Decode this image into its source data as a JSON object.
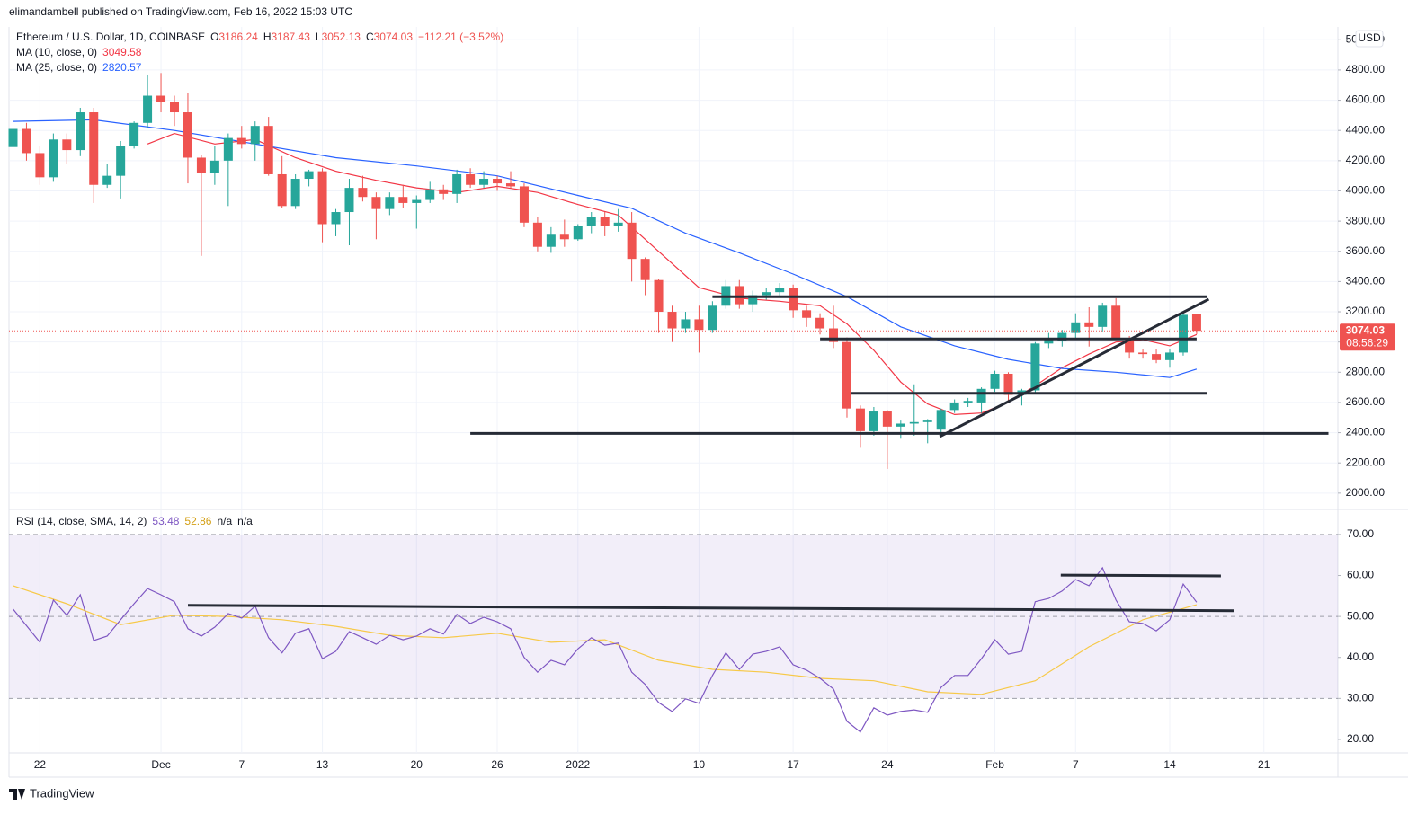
{
  "header": {
    "publisher": "elimandambell published on TradingView.com, Feb 16, 2022 15:03 UTC",
    "currency": "USD",
    "countdown": "08:56:29",
    "brand": "TradingView"
  },
  "legend": {
    "symbol": "Ethereum / U.S. Dollar, 1D, COINBASE",
    "open_label": "O",
    "high_label": "H",
    "low_label": "L",
    "close_label": "C",
    "change": "−112.21 (−3.52%)"
  },
  "chart_data": [
    {
      "type": "candlestick",
      "up_color": "#26a69a",
      "down_color": "#ef5350",
      "grid": true,
      "xlim": [
        -0.3,
        98.5
      ],
      "ylim": [
        1898,
        5085
      ],
      "xticks": [
        {
          "value": 2,
          "label": "22"
        },
        {
          "value": 11,
          "label": "Dec"
        },
        {
          "value": 17,
          "label": "7"
        },
        {
          "value": 23,
          "label": "13"
        },
        {
          "value": 30,
          "label": "20"
        },
        {
          "value": 36,
          "label": "26"
        },
        {
          "value": 42,
          "label": "2022"
        },
        {
          "value": 51,
          "label": "10"
        },
        {
          "value": 58,
          "label": "17"
        },
        {
          "value": 65,
          "label": "24"
        },
        {
          "value": 73,
          "label": "Feb"
        },
        {
          "value": 79,
          "label": "7"
        },
        {
          "value": 86,
          "label": "14"
        },
        {
          "value": 93,
          "label": "21"
        }
      ],
      "yticks": [
        {
          "value": 2000,
          "label": "2000.00"
        },
        {
          "value": 2200,
          "label": "2200.00"
        },
        {
          "value": 2400,
          "label": "2400.00"
        },
        {
          "value": 2600,
          "label": "2600.00"
        },
        {
          "value": 2800,
          "label": "2800.00"
        },
        {
          "value": 3000,
          "label": "3000.00"
        },
        {
          "value": 3200,
          "label": "3200.00"
        },
        {
          "value": 3400,
          "label": "3400.00"
        },
        {
          "value": 3600,
          "label": "3600.00"
        },
        {
          "value": 3800,
          "label": "3800.00"
        },
        {
          "value": 4000,
          "label": "4000.00"
        },
        {
          "value": 4200,
          "label": "4200.00"
        },
        {
          "value": 4400,
          "label": "4400.00"
        },
        {
          "value": 4600,
          "label": "4600.00"
        },
        {
          "value": 4800,
          "label": "4800.00"
        },
        {
          "value": 5000,
          "label": "5000.00"
        }
      ],
      "open": [
        4290,
        4410,
        4250,
        4090,
        4340,
        4270,
        4520,
        4040,
        4100,
        4300,
        4450,
        4630,
        4590,
        4520,
        4220,
        4120,
        4200,
        4350,
        4310,
        4430,
        4110,
        3900,
        4080,
        4130,
        3780,
        3860,
        4020,
        3960,
        3880,
        3960,
        3920,
        3940,
        4010,
        3980,
        4110,
        4040,
        4080,
        4050,
        4030,
        3790,
        3630,
        3710,
        3680,
        3770,
        3830,
        3770,
        3790,
        3550,
        3410,
        3200,
        3090,
        3150,
        3080,
        3240,
        3370,
        3250,
        3310,
        3330,
        3360,
        3210,
        3160,
        3090,
        3000,
        2560,
        2410,
        2540,
        2440,
        2460,
        2470,
        2420,
        2550,
        2600,
        2600,
        2690,
        2790,
        2650,
        2680,
        2990,
        3010,
        3060,
        3130,
        3100,
        3240,
        3020,
        2930,
        2920,
        2880,
        2930,
        3186.24
      ],
      "high": [
        4460,
        4450,
        4300,
        4380,
        4380,
        4550,
        4550,
        4180,
        4330,
        4460,
        4770,
        4780,
        4630,
        4650,
        4240,
        4300,
        4380,
        4430,
        4460,
        4490,
        4230,
        4110,
        4140,
        4150,
        3880,
        4080,
        4100,
        3990,
        3990,
        4040,
        3970,
        4060,
        4040,
        4140,
        4150,
        4130,
        4100,
        4130,
        4050,
        3830,
        3760,
        3810,
        3780,
        3860,
        3860,
        3880,
        3860,
        3560,
        3420,
        3240,
        3200,
        3240,
        3270,
        3410,
        3410,
        3340,
        3360,
        3390,
        3380,
        3240,
        3190,
        3240,
        3030,
        2580,
        2570,
        2550,
        2480,
        2720,
        2490,
        2560,
        2620,
        2630,
        2700,
        2810,
        2800,
        2690,
        3000,
        3060,
        3080,
        3190,
        3230,
        3260,
        3290,
        3040,
        2950,
        2950,
        2950,
        3190,
        3187.43
      ],
      "low": [
        4200,
        4200,
        4040,
        4060,
        4180,
        4230,
        3920,
        4020,
        3950,
        4280,
        4420,
        4520,
        4430,
        4050,
        3570,
        4040,
        3900,
        4280,
        4200,
        4100,
        3890,
        3880,
        4030,
        3660,
        3700,
        3640,
        3930,
        3680,
        3840,
        3890,
        3750,
        3920,
        3940,
        3920,
        4020,
        4020,
        4000,
        4020,
        3760,
        3600,
        3590,
        3630,
        3670,
        3720,
        3700,
        3730,
        3400,
        3310,
        3060,
        3000,
        3060,
        2930,
        3060,
        3220,
        3220,
        3200,
        3280,
        3300,
        3160,
        3100,
        3050,
        2960,
        2500,
        2300,
        2380,
        2160,
        2360,
        2380,
        2330,
        2380,
        2530,
        2570,
        2530,
        2670,
        2610,
        2580,
        2660,
        2960,
        2970,
        3020,
        2970,
        3070,
        3020,
        2890,
        2890,
        2860,
        2830,
        2910,
        3052.13
      ],
      "close": [
        4410,
        4250,
        4090,
        4340,
        4270,
        4520,
        4040,
        4100,
        4300,
        4450,
        4630,
        4590,
        4520,
        4220,
        4120,
        4200,
        4350,
        4310,
        4430,
        4110,
        3900,
        4080,
        4130,
        3780,
        3860,
        4020,
        3960,
        3880,
        3960,
        3920,
        3940,
        4010,
        3980,
        4110,
        4040,
        4080,
        4050,
        4030,
        3790,
        3630,
        3710,
        3680,
        3770,
        3830,
        3770,
        3790,
        3550,
        3410,
        3200,
        3090,
        3150,
        3080,
        3240,
        3370,
        3250,
        3310,
        3330,
        3360,
        3210,
        3160,
        3090,
        3000,
        2560,
        2410,
        2540,
        2440,
        2460,
        2470,
        2480,
        2550,
        2600,
        2610,
        2690,
        2790,
        2650,
        2680,
        2990,
        3020,
        3060,
        3130,
        3100,
        3240,
        3020,
        2930,
        2920,
        2880,
        2930,
        3180,
        3074.03
      ],
      "series": [
        {
          "name": "MA (10, close, 0)",
          "color": "#f23645",
          "x": [
            10,
            12,
            15,
            18,
            21,
            24,
            27,
            30,
            33,
            36,
            39,
            42,
            45,
            48,
            51,
            54,
            57,
            60,
            62,
            64,
            66,
            68,
            70,
            72,
            74,
            76,
            78,
            80,
            82,
            84,
            86,
            88
          ],
          "values": [
            4310,
            4380,
            4310,
            4340,
            4220,
            4130,
            4070,
            4020,
            3990,
            4030,
            3990,
            3910,
            3840,
            3600,
            3360,
            3290,
            3270,
            3240,
            3120,
            2945,
            2735,
            2590,
            2520,
            2530,
            2600,
            2710,
            2830,
            2920,
            3000,
            3015,
            2975,
            3049.58
          ]
        },
        {
          "name": "MA (25, close, 0)",
          "color": "#2962ff",
          "x": [
            0,
            6,
            12,
            18,
            24,
            30,
            36,
            42,
            46,
            50,
            54,
            58,
            62,
            66,
            70,
            74,
            78,
            82,
            86,
            88
          ],
          "values": [
            4460,
            4470,
            4400,
            4310,
            4220,
            4165,
            4100,
            3970,
            3885,
            3720,
            3590,
            3450,
            3300,
            3100,
            2975,
            2885,
            2825,
            2800,
            2765,
            2820.57
          ]
        }
      ],
      "lines": [
        {
          "x": [
            34,
            97.8
          ],
          "y": [
            2395,
            2395
          ]
        },
        {
          "x": [
            62.3,
            88.8
          ],
          "y": [
            2660,
            2660
          ]
        },
        {
          "x": [
            60,
            88
          ],
          "y": [
            3020,
            3020
          ]
        },
        {
          "x": [
            52,
            88.8
          ],
          "y": [
            3300,
            3300
          ]
        },
        {
          "x": [
            68.9,
            88.9
          ],
          "y": [
            2374,
            3283
          ]
        }
      ]
    },
    {
      "type": "rsi",
      "title": "RSI (14, close, SMA, 14, 2)",
      "band": [
        30,
        70
      ],
      "midline": 50,
      "band_color": "#7e57c2",
      "xlim": [
        -0.3,
        98.5
      ],
      "ylim": [
        16.7,
        75.9
      ],
      "yticks": [
        {
          "value": 20,
          "label": "20.00"
        },
        {
          "value": 30,
          "label": "30.00"
        },
        {
          "value": 40,
          "label": "40.00"
        },
        {
          "value": 50,
          "label": "50.00"
        },
        {
          "value": 60,
          "label": "60.00"
        },
        {
          "value": 70,
          "label": "70.00"
        }
      ],
      "na_labels": [
        "n/a",
        "n/a"
      ],
      "series": [
        {
          "name": "RSI",
          "color": "#7e57c2",
          "x": [
            0,
            2,
            3,
            4,
            5,
            6,
            7,
            8,
            9,
            10,
            11,
            12,
            13,
            14,
            15,
            16,
            17,
            18,
            19,
            20,
            21,
            22,
            23,
            24,
            25,
            26,
            27,
            28,
            29,
            30,
            31,
            32,
            33,
            34,
            35,
            36,
            37,
            38,
            39,
            40,
            41,
            42,
            43,
            44,
            45,
            46,
            47,
            48,
            49,
            50,
            51,
            52,
            53,
            54,
            55,
            56,
            57,
            58,
            59,
            60,
            61,
            62,
            63,
            64,
            65,
            66,
            67,
            68,
            69,
            70,
            71,
            72,
            73,
            74,
            75,
            76,
            77,
            78,
            79,
            80,
            81,
            82,
            83,
            84,
            85,
            86,
            87,
            88
          ],
          "values": [
            51.8,
            43.7,
            54,
            50.3,
            55.3,
            44.1,
            45.2,
            49.2,
            53.1,
            56.8,
            55.3,
            53.6,
            47,
            45.2,
            47.4,
            50.7,
            49.6,
            52.5,
            44.8,
            41.1,
            45.9,
            47,
            39.7,
            41.5,
            46.3,
            44.8,
            43.2,
            45.4,
            44.3,
            45.2,
            47,
            45.7,
            50.5,
            48.3,
            49.8,
            48.7,
            47,
            40,
            36.4,
            39.3,
            38.2,
            42.1,
            44.8,
            43,
            43.5,
            36.4,
            33.4,
            29,
            26.8,
            29.9,
            28.8,
            35.6,
            41.1,
            37.1,
            40.8,
            41.5,
            42.6,
            38.2,
            36.9,
            34.9,
            32.3,
            24.4,
            21.8,
            27.7,
            25.9,
            26.8,
            27.2,
            26.6,
            32.7,
            35.6,
            35.6,
            39.7,
            44.3,
            40.8,
            41.5,
            53.6,
            54.4,
            56.2,
            59,
            57.5,
            61.9,
            54,
            48.7,
            48.3,
            46.5,
            49.2,
            57.9,
            53.48
          ]
        },
        {
          "name": "RSI-based MA",
          "color": "#f7c948",
          "x": [
            0,
            4,
            8,
            12,
            16,
            20,
            24,
            28,
            32,
            36,
            40,
            44,
            48,
            52,
            56,
            60,
            64,
            68,
            72,
            76,
            80,
            84,
            88
          ],
          "values": [
            57.5,
            53.1,
            48,
            50.3,
            50,
            49.2,
            47.6,
            45.4,
            44.8,
            45.9,
            43.7,
            44.3,
            39.3,
            37.1,
            36.4,
            34.9,
            34.3,
            31.6,
            31,
            34.3,
            42.6,
            49.2,
            52.86
          ]
        }
      ],
      "lines": [
        {
          "x": [
            13,
            90.8
          ],
          "y": [
            52.7,
            51.4
          ]
        },
        {
          "x": [
            77.9,
            89.8
          ],
          "y": [
            60.1,
            59.9
          ]
        }
      ]
    }
  ]
}
